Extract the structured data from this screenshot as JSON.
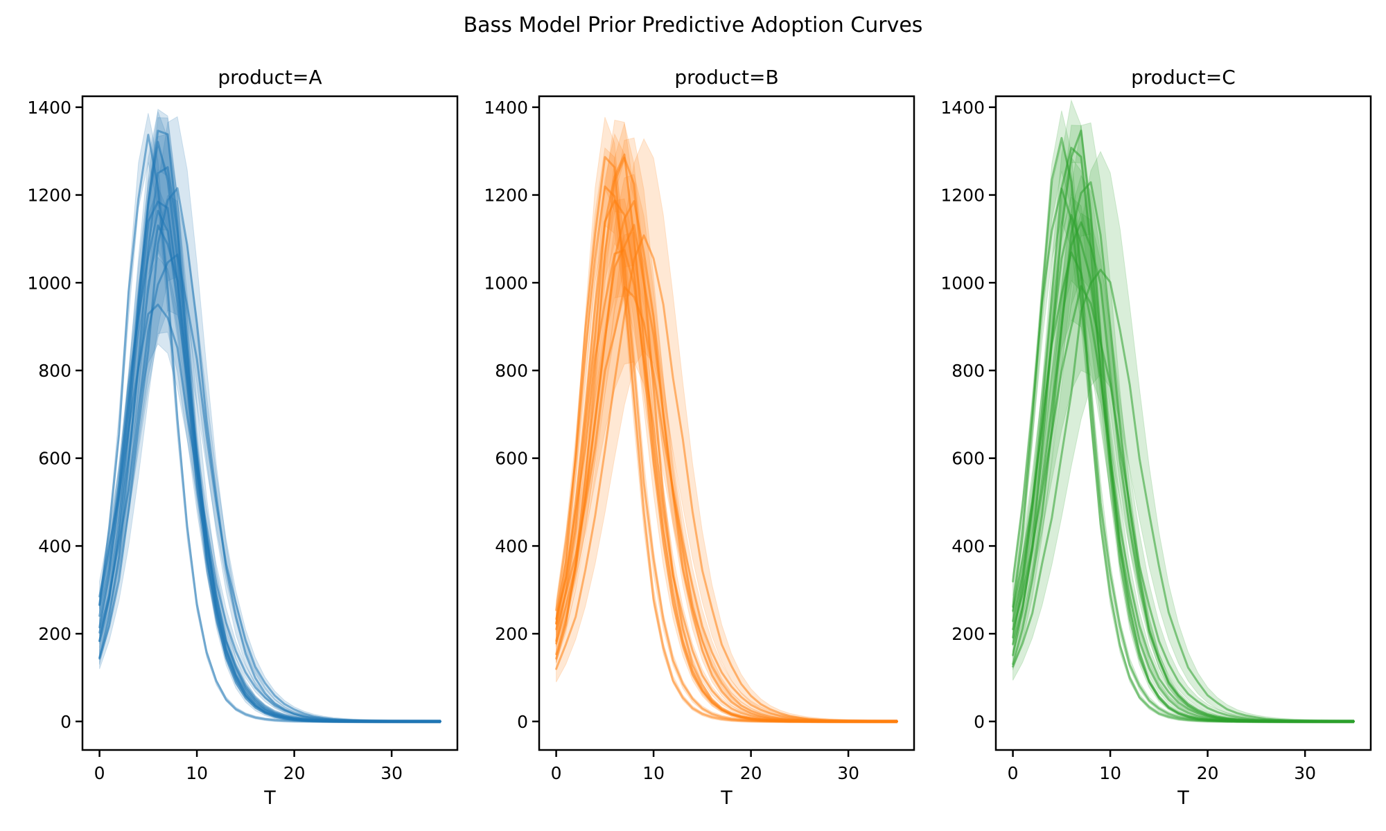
{
  "figure": {
    "suptitle": "Bass Model Prior Predictive Adoption Curves",
    "background_color": "#ffffff",
    "frame_color": "#000000",
    "text_color": "#000000"
  },
  "chart_data": [
    {
      "type": "line",
      "title": "product=A",
      "xlabel": "T",
      "color": "#1f77b4",
      "line_alpha": 0.55,
      "band_alpha": 0.18,
      "xlim": [
        -1.75,
        36.75
      ],
      "ylim": [
        -65,
        1425
      ],
      "xticks": [
        0,
        10,
        20,
        30
      ],
      "yticks": [
        0,
        200,
        400,
        600,
        800,
        1000,
        1200,
        1400
      ],
      "x_start": 0,
      "x_stop": 35,
      "x_step": 1,
      "curve_model": "bass: y(t)=m*(p+q)^2/p*exp(-(p+q)t)/(1+(q/p)exp(-(p+q)t))^2 ; shaded band = y*(1±band)",
      "draws": [
        {
          "p": 0.018,
          "q": 0.5,
          "m": 10000,
          "band": 0.05
        },
        {
          "p": 0.03,
          "q": 0.55,
          "m": 8700,
          "band": 0.04
        },
        {
          "p": 0.022,
          "q": 0.48,
          "m": 9800,
          "band": 0.08
        },
        {
          "p": 0.016,
          "q": 0.52,
          "m": 9200,
          "band": 0.1
        },
        {
          "p": 0.025,
          "q": 0.45,
          "m": 9500,
          "band": 0.1
        },
        {
          "p": 0.014,
          "q": 0.44,
          "m": 10300,
          "band": 0.15
        },
        {
          "p": 0.028,
          "q": 0.42,
          "m": 9600,
          "band": 0.06
        },
        {
          "p": 0.02,
          "q": 0.38,
          "m": 10200,
          "band": 0.12
        },
        {
          "p": 0.032,
          "q": 0.36,
          "m": 9000,
          "band": 0.1
        },
        {
          "p": 0.02,
          "q": 0.46,
          "m": 9000,
          "band": 0.2
        }
      ]
    },
    {
      "type": "line",
      "title": "product=B",
      "xlabel": "T",
      "color": "#ff7f0e",
      "line_alpha": 0.55,
      "band_alpha": 0.18,
      "xlim": [
        -1.75,
        36.75
      ],
      "ylim": [
        -65,
        1425
      ],
      "xticks": [
        0,
        10,
        20,
        30
      ],
      "yticks": [
        0,
        200,
        400,
        600,
        800,
        1000,
        1200,
        1400
      ],
      "x_start": 0,
      "x_stop": 35,
      "x_step": 1,
      "curve_model": "bass: y(t)=m*(p+q)^2/p*exp(-(p+q)t)/(1+(q/p)exp(-(p+q)t))^2 ; shaded band = y*(1±band)",
      "draws": [
        {
          "p": 0.014,
          "q": 0.5,
          "m": 10000,
          "band": 0.03
        },
        {
          "p": 0.026,
          "q": 0.56,
          "m": 8500,
          "band": 0.06
        },
        {
          "p": 0.019,
          "q": 0.48,
          "m": 9900,
          "band": 0.08
        },
        {
          "p": 0.023,
          "q": 0.46,
          "m": 9600,
          "band": 0.1
        },
        {
          "p": 0.015,
          "q": 0.43,
          "m": 10400,
          "band": 0.12
        },
        {
          "p": 0.029,
          "q": 0.5,
          "m": 8800,
          "band": 0.07
        },
        {
          "p": 0.017,
          "q": 0.4,
          "m": 10300,
          "band": 0.12
        },
        {
          "p": 0.024,
          "q": 0.41,
          "m": 9500,
          "band": 0.1
        },
        {
          "p": 0.011,
          "q": 0.38,
          "m": 10800,
          "band": 0.22
        },
        {
          "p": 0.021,
          "q": 0.35,
          "m": 9900,
          "band": 0.15
        }
      ]
    },
    {
      "type": "line",
      "title": "product=C",
      "xlabel": "T",
      "color": "#2ca02c",
      "line_alpha": 0.55,
      "band_alpha": 0.18,
      "xlim": [
        -1.75,
        36.75
      ],
      "ylim": [
        -65,
        1425
      ],
      "xticks": [
        0,
        10,
        20,
        30
      ],
      "yticks": [
        0,
        200,
        400,
        600,
        800,
        1000,
        1200,
        1400
      ],
      "x_start": 0,
      "x_stop": 35,
      "x_step": 1,
      "curve_model": "bass: y(t)=m*(p+q)^2/p*exp(-(p+q)t)/(1+(q/p)exp(-(p+q)t))^2 ; shaded band = y*(1±band)",
      "draws": [
        {
          "p": 0.016,
          "q": 0.52,
          "m": 9700,
          "band": 0.03
        },
        {
          "p": 0.03,
          "q": 0.54,
          "m": 8800,
          "band": 0.05
        },
        {
          "p": 0.02,
          "q": 0.5,
          "m": 9700,
          "band": 0.08
        },
        {
          "p": 0.035,
          "q": 0.48,
          "m": 8900,
          "band": 0.07
        },
        {
          "p": 0.013,
          "q": 0.46,
          "m": 10300,
          "band": 0.1
        },
        {
          "p": 0.024,
          "q": 0.44,
          "m": 9400,
          "band": 0.12
        },
        {
          "p": 0.018,
          "q": 0.42,
          "m": 9900,
          "band": 0.1
        },
        {
          "p": 0.027,
          "q": 0.4,
          "m": 9300,
          "band": 0.13
        },
        {
          "p": 0.012,
          "q": 0.37,
          "m": 10600,
          "band": 0.24
        },
        {
          "p": 0.022,
          "q": 0.36,
          "m": 9700,
          "band": 0.18
        }
      ]
    }
  ]
}
